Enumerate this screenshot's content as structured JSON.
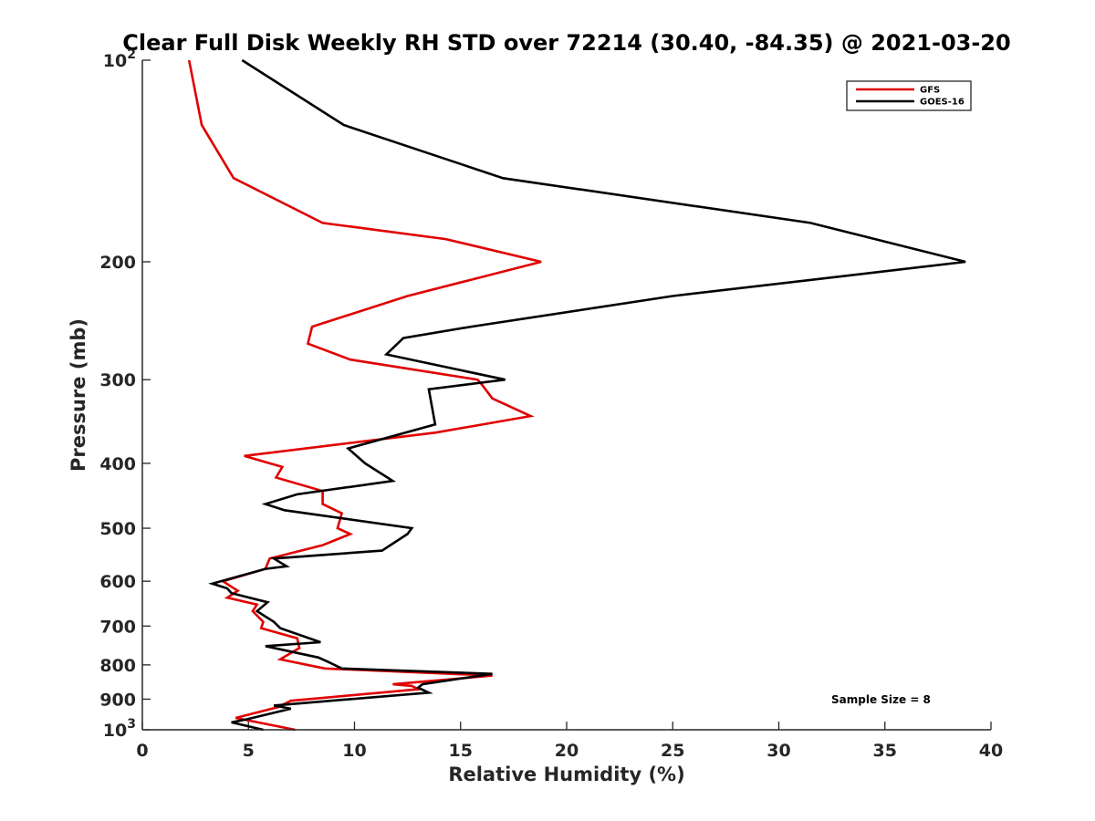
{
  "chart_data": {
    "type": "line",
    "title": "Clear Full Disk Weekly RH STD over 72214 (30.40, -84.35) @ 2021-03-20",
    "xlabel": "Relative Humidity (%)",
    "ylabel": "Pressure (mb)",
    "xlim": [
      0,
      40
    ],
    "ylim": [
      100,
      1000
    ],
    "yscale": "log",
    "yreversed": true,
    "x_ticks": [
      0,
      5,
      10,
      15,
      20,
      25,
      30,
      35,
      40
    ],
    "x_tick_labels": [
      "0",
      "5",
      "10",
      "15",
      "20",
      "25",
      "30",
      "35",
      "40"
    ],
    "y_ticks": [
      100,
      200,
      300,
      400,
      500,
      600,
      700,
      800,
      900,
      1000
    ],
    "y_tick_labels": [
      {
        "base": "10",
        "exp": "2"
      },
      {
        "text": "200"
      },
      {
        "text": "300"
      },
      {
        "text": "400"
      },
      {
        "text": "500"
      },
      {
        "text": "600"
      },
      {
        "text": "700"
      },
      {
        "text": "800"
      },
      {
        "text": "900"
      },
      {
        "base": "10",
        "exp": "3"
      }
    ],
    "legend_position": "top-right",
    "series": [
      {
        "name": "GFS",
        "color": "#e00000",
        "points": [
          [
            2.2,
            100
          ],
          [
            2.8,
            125
          ],
          [
            4.3,
            150
          ],
          [
            8.5,
            175
          ],
          [
            14.3,
            185
          ],
          [
            18.8,
            200
          ],
          [
            12.5,
            225
          ],
          [
            8.0,
            250
          ],
          [
            7.8,
            265
          ],
          [
            9.8,
            280
          ],
          [
            15.8,
            300
          ],
          [
            16.0,
            305
          ],
          [
            16.5,
            320
          ],
          [
            18.3,
            340
          ],
          [
            13.8,
            360
          ],
          [
            4.8,
            390
          ],
          [
            6.6,
            405
          ],
          [
            6.3,
            420
          ],
          [
            8.5,
            440
          ],
          [
            8.5,
            460
          ],
          [
            9.4,
            475
          ],
          [
            9.2,
            500
          ],
          [
            9.8,
            510
          ],
          [
            8.5,
            530
          ],
          [
            6.0,
            555
          ],
          [
            5.8,
            575
          ],
          [
            3.8,
            600
          ],
          [
            4.5,
            620
          ],
          [
            4.0,
            635
          ],
          [
            5.4,
            650
          ],
          [
            5.2,
            665
          ],
          [
            5.7,
            690
          ],
          [
            5.6,
            705
          ],
          [
            7.3,
            730
          ],
          [
            7.4,
            755
          ],
          [
            6.5,
            785
          ],
          [
            8.6,
            810
          ],
          [
            16.5,
            830
          ],
          [
            11.8,
            855
          ],
          [
            12.7,
            860
          ],
          [
            13.0,
            870
          ],
          [
            7.0,
            905
          ],
          [
            6.4,
            925
          ],
          [
            4.4,
            960
          ],
          [
            7.2,
            1000
          ]
        ]
      },
      {
        "name": "GOES-16",
        "color": "#000000",
        "points": [
          [
            4.7,
            100
          ],
          [
            9.5,
            125
          ],
          [
            17.0,
            150
          ],
          [
            31.5,
            175
          ],
          [
            38.8,
            200
          ],
          [
            25.0,
            225
          ],
          [
            15.5,
            250
          ],
          [
            12.3,
            260
          ],
          [
            11.5,
            275
          ],
          [
            17.1,
            300
          ],
          [
            13.5,
            310
          ],
          [
            13.8,
            350
          ],
          [
            9.7,
            380
          ],
          [
            10.5,
            400
          ],
          [
            11.8,
            425
          ],
          [
            7.3,
            445
          ],
          [
            5.8,
            460
          ],
          [
            6.7,
            470
          ],
          [
            12.7,
            500
          ],
          [
            12.5,
            510
          ],
          [
            11.3,
            540
          ],
          [
            6.2,
            555
          ],
          [
            6.8,
            570
          ],
          [
            5.8,
            575
          ],
          [
            3.3,
            605
          ],
          [
            4.0,
            615
          ],
          [
            4.2,
            625
          ],
          [
            5.9,
            645
          ],
          [
            5.4,
            665
          ],
          [
            6.2,
            690
          ],
          [
            6.5,
            705
          ],
          [
            8.4,
            740
          ],
          [
            5.8,
            750
          ],
          [
            8.3,
            780
          ],
          [
            8.7,
            790
          ],
          [
            9.4,
            810
          ],
          [
            16.5,
            825
          ],
          [
            13.2,
            855
          ],
          [
            13.0,
            865
          ],
          [
            13.5,
            880
          ],
          [
            6.2,
            920
          ],
          [
            7.0,
            930
          ],
          [
            4.9,
            965
          ],
          [
            4.2,
            975
          ],
          [
            5.7,
            1000
          ]
        ]
      }
    ],
    "annotations": [
      "Sample Size = 8"
    ]
  }
}
